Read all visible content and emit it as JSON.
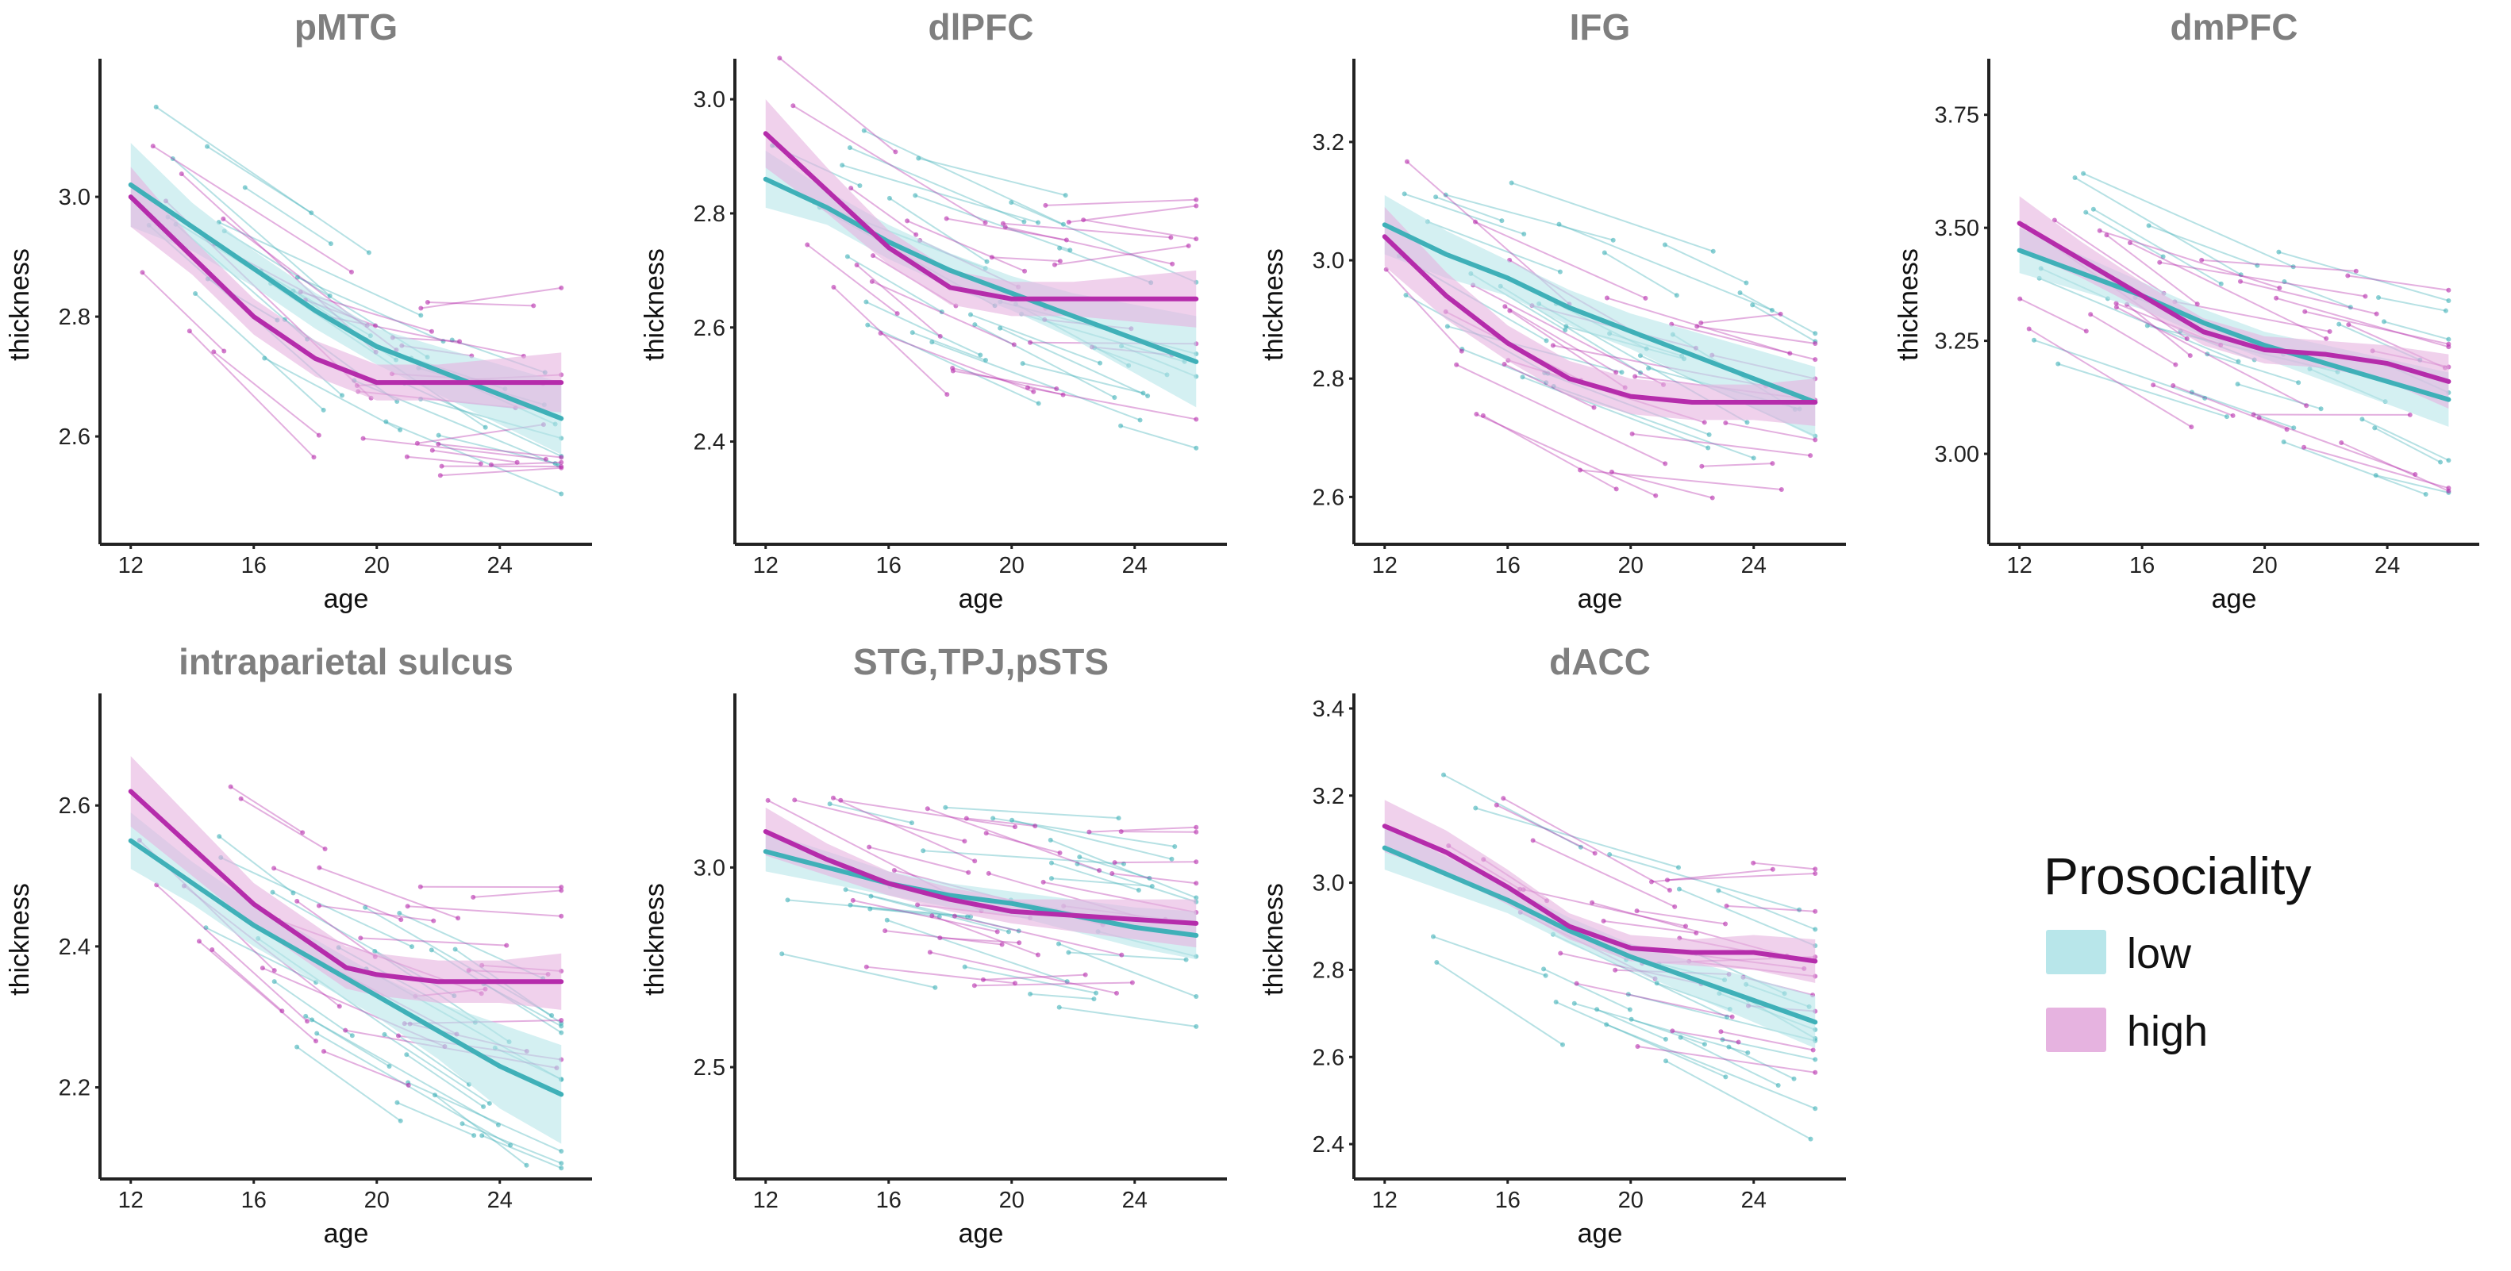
{
  "legend": {
    "title": "Prosociality",
    "entries": [
      {
        "label": "low",
        "color": "#3fb0b8",
        "ribbon": "#b8e6ea"
      },
      {
        "label": "high",
        "color": "#b52cab",
        "ribbon": "#e6b3e0"
      }
    ]
  },
  "chart_data": [
    {
      "type": "line",
      "title": "pMTG",
      "xlabel": "age",
      "ylabel": "thickness",
      "xlim": [
        11,
        27
      ],
      "ylim": [
        2.42,
        3.22
      ],
      "xticks": [
        12,
        16,
        20,
        24
      ],
      "yticks": [
        2.6,
        2.8,
        3.0
      ],
      "series": [
        {
          "name": "low",
          "x": [
            12,
            14,
            16,
            18,
            20,
            22,
            24,
            26
          ],
          "y": [
            3.02,
            2.95,
            2.88,
            2.81,
            2.75,
            2.71,
            2.67,
            2.63
          ],
          "band": [
            0.07,
            0.04,
            0.03,
            0.03,
            0.03,
            0.04,
            0.05,
            0.06
          ]
        },
        {
          "name": "high",
          "x": [
            12,
            14,
            16,
            18,
            19,
            20,
            22,
            24,
            26
          ],
          "y": [
            3.0,
            2.9,
            2.8,
            2.73,
            2.71,
            2.69,
            2.69,
            2.69,
            2.69
          ],
          "band": [
            0.05,
            0.03,
            0.03,
            0.03,
            0.03,
            0.03,
            0.03,
            0.04,
            0.05
          ]
        }
      ]
    },
    {
      "type": "line",
      "title": "dlPFC",
      "xlabel": "age",
      "ylabel": "thickness",
      "xlim": [
        11,
        27
      ],
      "ylim": [
        2.22,
        3.06
      ],
      "xticks": [
        12,
        16,
        20,
        24
      ],
      "yticks": [
        2.4,
        2.6,
        2.8,
        3.0
      ],
      "series": [
        {
          "name": "low",
          "x": [
            12,
            14,
            16,
            18,
            20,
            22,
            24,
            26
          ],
          "y": [
            2.86,
            2.81,
            2.75,
            2.7,
            2.66,
            2.62,
            2.58,
            2.54
          ],
          "band": [
            0.05,
            0.03,
            0.03,
            0.03,
            0.03,
            0.04,
            0.06,
            0.08
          ]
        },
        {
          "name": "high",
          "x": [
            12,
            14,
            16,
            18,
            20,
            22,
            24,
            26
          ],
          "y": [
            2.94,
            2.84,
            2.74,
            2.67,
            2.65,
            2.65,
            2.65,
            2.65
          ],
          "band": [
            0.06,
            0.04,
            0.03,
            0.03,
            0.03,
            0.03,
            0.04,
            0.05
          ]
        }
      ]
    },
    {
      "type": "line",
      "title": "IFG",
      "xlabel": "age",
      "ylabel": "thickness",
      "xlim": [
        11,
        27
      ],
      "ylim": [
        2.52,
        3.33
      ],
      "xticks": [
        12,
        16,
        20,
        24
      ],
      "yticks": [
        2.6,
        2.8,
        3.0,
        3.2
      ],
      "series": [
        {
          "name": "low",
          "x": [
            12,
            14,
            16,
            18,
            20,
            22,
            24,
            26
          ],
          "y": [
            3.06,
            3.01,
            2.97,
            2.92,
            2.88,
            2.84,
            2.8,
            2.76
          ],
          "band": [
            0.05,
            0.04,
            0.03,
            0.03,
            0.03,
            0.04,
            0.05,
            0.06
          ]
        },
        {
          "name": "high",
          "x": [
            12,
            14,
            16,
            18,
            20,
            22,
            24,
            26
          ],
          "y": [
            3.04,
            2.94,
            2.86,
            2.8,
            2.77,
            2.76,
            2.76,
            2.76
          ],
          "band": [
            0.05,
            0.04,
            0.03,
            0.03,
            0.03,
            0.03,
            0.03,
            0.04
          ]
        }
      ]
    },
    {
      "type": "line",
      "title": "dmPFC",
      "xlabel": "age",
      "ylabel": "thickness",
      "xlim": [
        11,
        27
      ],
      "ylim": [
        2.8,
        3.86
      ],
      "xticks": [
        12,
        16,
        20,
        24
      ],
      "yticks": [
        3.0,
        3.25,
        3.5,
        3.75
      ],
      "series": [
        {
          "name": "low",
          "x": [
            12,
            14,
            16,
            18,
            20,
            22,
            24,
            26
          ],
          "y": [
            3.45,
            3.4,
            3.35,
            3.29,
            3.24,
            3.2,
            3.16,
            3.12
          ],
          "band": [
            0.05,
            0.04,
            0.03,
            0.03,
            0.03,
            0.04,
            0.05,
            0.06
          ]
        },
        {
          "name": "high",
          "x": [
            12,
            14,
            16,
            18,
            20,
            22,
            24,
            26
          ],
          "y": [
            3.51,
            3.43,
            3.35,
            3.27,
            3.23,
            3.22,
            3.2,
            3.16
          ],
          "band": [
            0.06,
            0.04,
            0.03,
            0.03,
            0.03,
            0.03,
            0.04,
            0.06
          ]
        }
      ]
    },
    {
      "type": "line",
      "title": "intraparietal sulcus",
      "xlabel": "age",
      "ylabel": "thickness",
      "xlim": [
        11,
        27
      ],
      "ylim": [
        2.07,
        2.75
      ],
      "xticks": [
        12,
        16,
        20,
        24
      ],
      "yticks": [
        2.2,
        2.4,
        2.6
      ],
      "series": [
        {
          "name": "low",
          "x": [
            12,
            14,
            16,
            18,
            20,
            22,
            24,
            26
          ],
          "y": [
            2.55,
            2.49,
            2.43,
            2.38,
            2.33,
            2.28,
            2.23,
            2.19
          ],
          "band": [
            0.04,
            0.03,
            0.03,
            0.03,
            0.03,
            0.04,
            0.06,
            0.07
          ]
        },
        {
          "name": "high",
          "x": [
            12,
            14,
            16,
            18,
            19,
            20,
            22,
            24,
            26
          ],
          "y": [
            2.62,
            2.54,
            2.46,
            2.4,
            2.37,
            2.36,
            2.35,
            2.35,
            2.35
          ],
          "band": [
            0.05,
            0.04,
            0.03,
            0.03,
            0.03,
            0.03,
            0.03,
            0.03,
            0.04
          ]
        }
      ]
    },
    {
      "type": "line",
      "title": "STG,TPJ,pSTS",
      "xlabel": "age",
      "ylabel": "thickness",
      "xlim": [
        11,
        27
      ],
      "ylim": [
        2.22,
        3.42
      ],
      "xticks": [
        12,
        16,
        20,
        24
      ],
      "yticks": [
        2.5,
        3.0
      ],
      "series": [
        {
          "name": "low",
          "x": [
            12,
            14,
            16,
            18,
            20,
            22,
            24,
            26
          ],
          "y": [
            3.04,
            3.0,
            2.96,
            2.93,
            2.91,
            2.88,
            2.85,
            2.83
          ],
          "band": [
            0.05,
            0.04,
            0.03,
            0.03,
            0.03,
            0.04,
            0.05,
            0.06
          ]
        },
        {
          "name": "high",
          "x": [
            12,
            14,
            16,
            18,
            20,
            22,
            24,
            26
          ],
          "y": [
            3.09,
            3.02,
            2.96,
            2.92,
            2.89,
            2.88,
            2.87,
            2.86
          ],
          "band": [
            0.06,
            0.04,
            0.03,
            0.03,
            0.03,
            0.04,
            0.05,
            0.06
          ]
        }
      ]
    },
    {
      "type": "line",
      "title": "dACC",
      "xlabel": "age",
      "ylabel": "thickness",
      "xlim": [
        11,
        27
      ],
      "ylim": [
        2.32,
        3.42
      ],
      "xticks": [
        12,
        16,
        20,
        24
      ],
      "yticks": [
        2.4,
        2.6,
        2.8,
        3.0,
        3.2,
        3.4
      ],
      "series": [
        {
          "name": "low",
          "x": [
            12,
            14,
            16,
            18,
            20,
            22,
            24,
            26
          ],
          "y": [
            3.08,
            3.02,
            2.96,
            2.89,
            2.83,
            2.78,
            2.73,
            2.68
          ],
          "band": [
            0.05,
            0.04,
            0.03,
            0.03,
            0.03,
            0.04,
            0.05,
            0.06
          ]
        },
        {
          "name": "high",
          "x": [
            12,
            14,
            16,
            18,
            20,
            22,
            24,
            26
          ],
          "y": [
            3.13,
            3.07,
            2.99,
            2.9,
            2.85,
            2.84,
            2.84,
            2.82
          ],
          "band": [
            0.06,
            0.05,
            0.04,
            0.03,
            0.03,
            0.03,
            0.04,
            0.05
          ]
        }
      ]
    }
  ]
}
